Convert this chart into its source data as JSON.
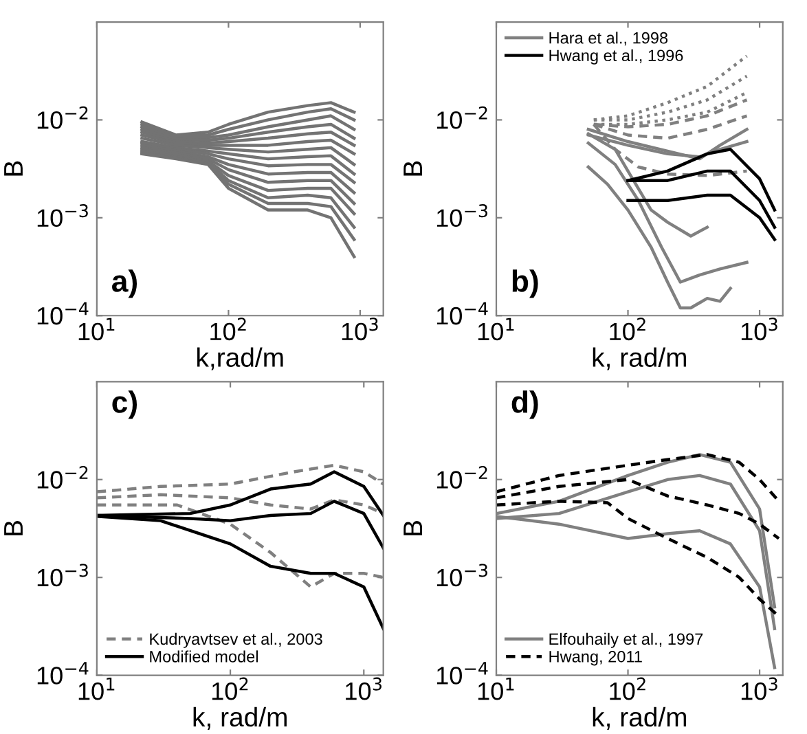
{
  "chart_data": [
    {
      "type": "line",
      "xlabel": "k,rad/m",
      "ylabel": "B",
      "annotations": [
        "a)"
      ],
      "log": "xy",
      "grid": false,
      "legend": false,
      "line_style": "solid",
      "marker": "none",
      "xlim": [
        10,
        1500
      ],
      "ylim": [
        0.0001,
        0.1
      ],
      "xticks": [
        {
          "value": 10,
          "label": "10$^{1}$"
        },
        {
          "value": 100,
          "label": "10$^{2}$"
        },
        {
          "value": 1000,
          "label": "10$^{3}$"
        }
      ],
      "yticks": [
        {
          "value": 0.0001,
          "label": "10$^{−4}$"
        },
        {
          "value": 0.001,
          "label": "10$^{−3}$"
        },
        {
          "value": 0.01,
          "label": "10$^{−2}$"
        }
      ],
      "x": [
        22,
        40,
        70,
        100,
        200,
        400,
        600,
        900
      ],
      "series": [
        {
          "color": "#737373",
          "values": [
            0.0095,
            0.007,
            0.0075,
            0.009,
            0.012,
            0.014,
            0.015,
            0.012
          ]
        },
        {
          "color": "#737373",
          "values": [
            0.009,
            0.0068,
            0.007,
            0.008,
            0.01,
            0.012,
            0.013,
            0.01
          ]
        },
        {
          "color": "#737373",
          "values": [
            0.0085,
            0.0066,
            0.0066,
            0.007,
            0.0085,
            0.01,
            0.011,
            0.008
          ]
        },
        {
          "color": "#737373",
          "values": [
            0.008,
            0.0063,
            0.0062,
            0.0065,
            0.0075,
            0.0085,
            0.009,
            0.0065
          ]
        },
        {
          "color": "#737373",
          "values": [
            0.0075,
            0.006,
            0.0058,
            0.006,
            0.0065,
            0.0072,
            0.0075,
            0.0055
          ]
        },
        {
          "color": "#737373",
          "values": [
            0.007,
            0.0058,
            0.0055,
            0.0055,
            0.0055,
            0.006,
            0.0062,
            0.0045
          ]
        },
        {
          "color": "#737373",
          "values": [
            0.0065,
            0.0055,
            0.0052,
            0.005,
            0.0047,
            0.005,
            0.0052,
            0.0035
          ]
        },
        {
          "color": "#737373",
          "values": [
            0.006,
            0.0052,
            0.0048,
            0.0045,
            0.004,
            0.0042,
            0.0043,
            0.0028
          ]
        },
        {
          "color": "#737373",
          "values": [
            0.0058,
            0.005,
            0.0045,
            0.004,
            0.0034,
            0.0035,
            0.0035,
            0.0023
          ]
        },
        {
          "color": "#737373",
          "values": [
            0.0055,
            0.0048,
            0.0042,
            0.0035,
            0.0028,
            0.0029,
            0.0029,
            0.0018
          ]
        },
        {
          "color": "#737373",
          "values": [
            0.0052,
            0.0046,
            0.004,
            0.0031,
            0.0023,
            0.0024,
            0.0024,
            0.0014
          ]
        },
        {
          "color": "#737373",
          "values": [
            0.005,
            0.0044,
            0.0038,
            0.0027,
            0.0019,
            0.002,
            0.002,
            0.0011
          ]
        },
        {
          "color": "#737373",
          "values": [
            0.0048,
            0.0042,
            0.0037,
            0.0024,
            0.0016,
            0.0017,
            0.0016,
            0.0008
          ]
        },
        {
          "color": "#737373",
          "values": [
            0.0046,
            0.0041,
            0.0036,
            0.0022,
            0.0014,
            0.0014,
            0.0013,
            0.0006
          ]
        },
        {
          "color": "#737373",
          "values": [
            0.0045,
            0.004,
            0.0035,
            0.002,
            0.0012,
            0.0012,
            0.001,
            0.0004
          ]
        }
      ]
    },
    {
      "type": "line",
      "xlabel": "k, rad/m",
      "ylabel": "B",
      "annotations": [
        "b)"
      ],
      "log": "xy",
      "grid": false,
      "legend": "top left",
      "marker": "none",
      "xlim": [
        10,
        1500
      ],
      "ylim": [
        0.0001,
        0.1
      ],
      "xticks": [
        {
          "value": 10,
          "label": "10$^{1}$"
        },
        {
          "value": 100,
          "label": "10$^{2}$"
        },
        {
          "value": 1000,
          "label": "10$^{3}$"
        }
      ],
      "yticks": [
        {
          "value": 0.0001,
          "label": "10$^{−4}$"
        },
        {
          "value": 0.001,
          "label": "10$^{−3}$"
        },
        {
          "value": 0.01,
          "label": "10$^{−2}$"
        }
      ],
      "series": [
        {
          "name": "Hara et al., 1998",
          "color": "#808080",
          "line_style": "solid",
          "x": [
            50,
            70,
            100,
            150,
            200,
            250,
            300,
            400,
            500,
            600
          ],
          "values": [
            0.0033,
            0.0022,
            0.0012,
            0.0005,
            0.00022,
            0.00012,
            0.00012,
            0.00015,
            0.00014,
            0.00019
          ]
        },
        {
          "color": "#808080",
          "line_style": "solid",
          "x": [
            50,
            80,
            120,
            180,
            250,
            350,
            500,
            800
          ],
          "values": [
            0.0058,
            0.0035,
            0.0015,
            0.0005,
            0.00022,
            0.00026,
            0.0003,
            0.00035
          ]
        },
        {
          "color": "#808080",
          "line_style": "solid",
          "x": [
            50,
            80,
            100,
            150,
            200,
            300,
            400
          ],
          "values": [
            0.0072,
            0.005,
            0.003,
            0.0012,
            0.0009,
            0.00065,
            0.0008
          ]
        },
        {
          "color": "#808080",
          "line_style": "solid",
          "x": [
            50,
            100,
            200,
            350,
            500,
            800
          ],
          "values": [
            0.008,
            0.006,
            0.0048,
            0.004,
            0.0055,
            0.008
          ]
        },
        {
          "color": "#808080",
          "line_style": "solid",
          "x": [
            50,
            100,
            200,
            350,
            500,
            800
          ],
          "values": [
            0.007,
            0.0055,
            0.0045,
            0.0042,
            0.005,
            0.006
          ]
        },
        {
          "color": "#808080",
          "line_style": "dashed",
          "x": [
            55,
            100,
            200,
            400,
            800
          ],
          "values": [
            0.009,
            0.0085,
            0.009,
            0.011,
            0.016
          ]
        },
        {
          "color": "#808080",
          "line_style": "dashed",
          "x": [
            55,
            100,
            200,
            400,
            800
          ],
          "values": [
            0.009,
            0.007,
            0.0065,
            0.008,
            0.011
          ]
        },
        {
          "color": "#808080",
          "line_style": "dashed",
          "x": [
            55,
            80,
            120,
            200,
            400,
            800
          ],
          "values": [
            0.009,
            0.005,
            0.0033,
            0.0028,
            0.0027,
            0.003
          ]
        },
        {
          "color": "#808080",
          "line_style": "dotted",
          "x": [
            55,
            100,
            200,
            400,
            800
          ],
          "values": [
            0.01,
            0.011,
            0.015,
            0.022,
            0.045
          ]
        },
        {
          "color": "#808080",
          "line_style": "dotted",
          "x": [
            55,
            100,
            200,
            400,
            800
          ],
          "values": [
            0.01,
            0.01,
            0.012,
            0.016,
            0.028
          ]
        },
        {
          "color": "#808080",
          "line_style": "dotted",
          "x": [
            55,
            100,
            200,
            400,
            800
          ],
          "values": [
            0.009,
            0.009,
            0.01,
            0.012,
            0.019
          ]
        },
        {
          "name": "Hwang et al., 1996",
          "color": "#000000",
          "line_style": "solid",
          "x": [
            100,
            200,
            400,
            600,
            1000,
            1300
          ],
          "values": [
            0.0024,
            0.003,
            0.0045,
            0.005,
            0.0025,
            0.0012
          ]
        },
        {
          "color": "#000000",
          "line_style": "solid",
          "x": [
            100,
            200,
            400,
            600,
            1000,
            1300
          ],
          "values": [
            0.0024,
            0.0024,
            0.003,
            0.003,
            0.0015,
            0.0008
          ]
        },
        {
          "color": "#000000",
          "line_style": "solid",
          "x": [
            100,
            200,
            400,
            600,
            1000,
            1300
          ],
          "values": [
            0.0015,
            0.0015,
            0.0017,
            0.0017,
            0.001,
            0.0006
          ]
        }
      ]
    },
    {
      "type": "line",
      "xlabel": "k, rad/m",
      "ylabel": "B",
      "annotations": [
        "c)"
      ],
      "log": "xy",
      "grid": false,
      "legend": "bottom left",
      "marker": "none",
      "xlim": [
        10,
        1400
      ],
      "ylim": [
        0.0001,
        0.1
      ],
      "xticks": [
        {
          "value": 10,
          "label": "10$^{1}$"
        },
        {
          "value": 100,
          "label": "10$^{2}$"
        },
        {
          "value": 1000,
          "label": "10$^{3}$"
        }
      ],
      "yticks": [
        {
          "value": 0.0001,
          "label": "10$^{−4}$"
        },
        {
          "value": 0.001,
          "label": "10$^{−3}$"
        },
        {
          "value": 0.01,
          "label": "10$^{−2}$"
        }
      ],
      "series": [
        {
          "name": "Kudryavtsev et al., 2003",
          "color": "#808080",
          "line_style": "dashed",
          "x": [
            10,
            30,
            100,
            300,
            600,
            1000,
            1400
          ],
          "values": [
            0.0075,
            0.0085,
            0.009,
            0.012,
            0.014,
            0.012,
            0.009
          ]
        },
        {
          "color": "#808080",
          "line_style": "dashed",
          "x": [
            10,
            30,
            100,
            200,
            400,
            600,
            1000,
            1400
          ],
          "values": [
            0.0065,
            0.007,
            0.0065,
            0.0055,
            0.005,
            0.0062,
            0.0055,
            0.0045
          ]
        },
        {
          "color": "#808080",
          "line_style": "dashed",
          "x": [
            10,
            40,
            100,
            200,
            400,
            600,
            1000,
            1400
          ],
          "values": [
            0.0055,
            0.0055,
            0.0035,
            0.0018,
            0.0008,
            0.0011,
            0.0011,
            0.001
          ]
        },
        {
          "name": "Modified model",
          "color": "#000000",
          "line_style": "solid",
          "x": [
            10,
            50,
            100,
            200,
            400,
            600,
            1000,
            1400
          ],
          "values": [
            0.0043,
            0.0045,
            0.0055,
            0.008,
            0.009,
            0.012,
            0.0085,
            0.0043
          ]
        },
        {
          "color": "#000000",
          "line_style": "solid",
          "x": [
            10,
            50,
            100,
            200,
            400,
            600,
            1000,
            1400
          ],
          "values": [
            0.0043,
            0.004,
            0.0038,
            0.0043,
            0.0045,
            0.006,
            0.0045,
            0.002
          ]
        },
        {
          "color": "#000000",
          "line_style": "solid",
          "x": [
            10,
            30,
            100,
            200,
            400,
            600,
            1000,
            1400
          ],
          "values": [
            0.0042,
            0.0038,
            0.0022,
            0.0013,
            0.0011,
            0.0011,
            0.0008,
            0.0003
          ]
        }
      ]
    },
    {
      "type": "line",
      "xlabel": "k, rad/m",
      "ylabel": "B",
      "annotations": [
        "d)"
      ],
      "log": "xy",
      "grid": false,
      "legend": "bottom left",
      "marker": "none",
      "xlim": [
        10,
        1500
      ],
      "ylim": [
        0.0001,
        0.1
      ],
      "xticks": [
        {
          "value": 10,
          "label": "10$^{1}$"
        },
        {
          "value": 100,
          "label": "10$^{2}$"
        },
        {
          "value": 1000,
          "label": "10$^{3}$"
        }
      ],
      "yticks": [
        {
          "value": 0.0001,
          "label": "10$^{−4}$"
        },
        {
          "value": 0.001,
          "label": "10$^{−3}$"
        },
        {
          "value": 0.01,
          "label": "10$^{−2}$"
        }
      ],
      "series": [
        {
          "name": "Elfouhaily et al., 1997",
          "color": "#808080",
          "line_style": "solid",
          "x": [
            10,
            30,
            100,
            200,
            350,
            600,
            1000,
            1300
          ],
          "values": [
            0.0045,
            0.006,
            0.011,
            0.015,
            0.018,
            0.015,
            0.005,
            0.0005
          ]
        },
        {
          "color": "#808080",
          "line_style": "solid",
          "x": [
            10,
            30,
            100,
            200,
            350,
            600,
            1000,
            1300
          ],
          "values": [
            0.004,
            0.0045,
            0.0075,
            0.01,
            0.011,
            0.009,
            0.003,
            0.0003
          ]
        },
        {
          "color": "#808080",
          "line_style": "solid",
          "x": [
            10,
            30,
            100,
            200,
            350,
            600,
            1000,
            1300
          ],
          "values": [
            0.0042,
            0.0035,
            0.0025,
            0.0028,
            0.003,
            0.0022,
            0.0008,
            0.00012
          ]
        },
        {
          "name": "Hwang, 2011",
          "color": "#000000",
          "line_style": "dashed",
          "x": [
            10,
            30,
            100,
            200,
            400,
            700,
            1000,
            1400
          ],
          "values": [
            0.0075,
            0.011,
            0.014,
            0.016,
            0.018,
            0.015,
            0.01,
            0.006
          ]
        },
        {
          "color": "#000000",
          "line_style": "dashed",
          "x": [
            10,
            30,
            100,
            200,
            400,
            700,
            1000,
            1400
          ],
          "values": [
            0.0065,
            0.0085,
            0.01,
            0.0068,
            0.0055,
            0.0045,
            0.0035,
            0.0025
          ]
        },
        {
          "color": "#000000",
          "line_style": "dashed",
          "x": [
            10,
            30,
            70,
            100,
            200,
            400,
            700,
            1000,
            1400
          ],
          "values": [
            0.0055,
            0.006,
            0.0058,
            0.004,
            0.0025,
            0.0016,
            0.001,
            0.0006,
            0.0004
          ]
        }
      ]
    }
  ]
}
